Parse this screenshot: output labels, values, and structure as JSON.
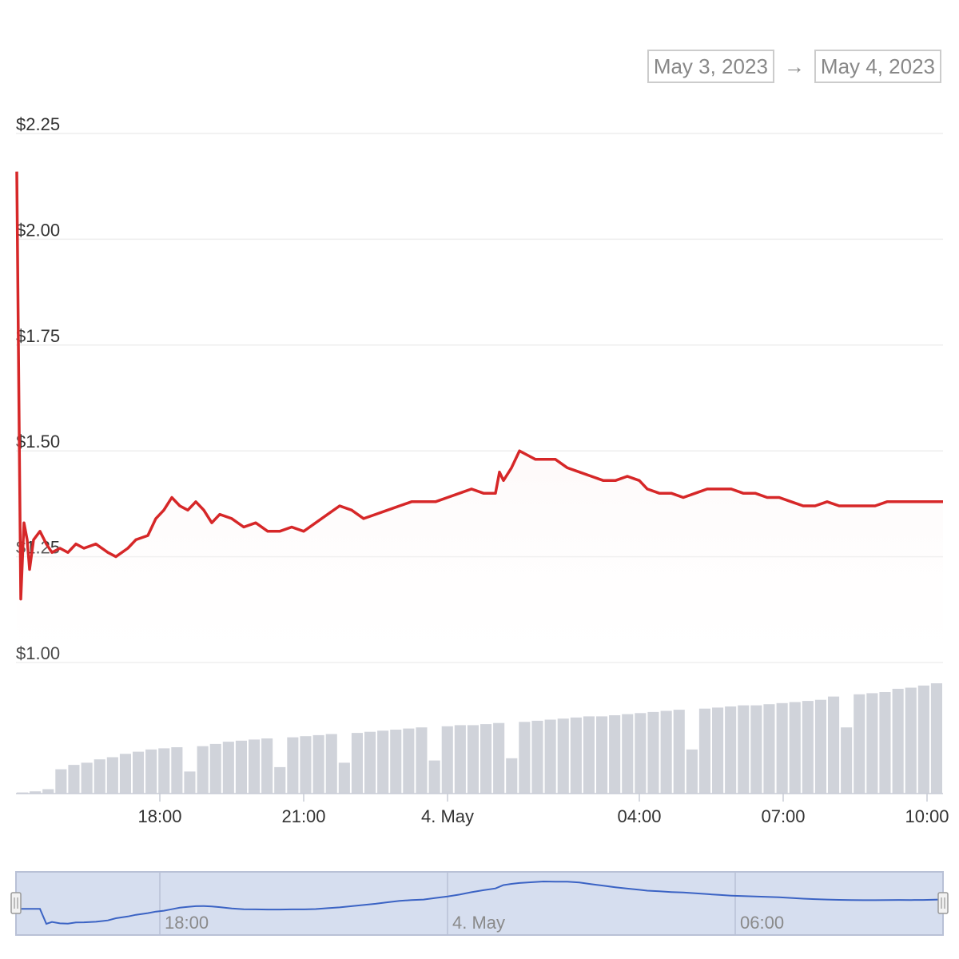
{
  "range_selector": {
    "from": "May 3, 2023",
    "arrow": "→",
    "to": "May 4, 2023"
  },
  "colors": {
    "price_line": "#d62728",
    "area_fill": "#fbe9e9",
    "volume_bar": "#d0d3da",
    "navigator_fill": "#d6deef",
    "navigator_line": "#3b63c4",
    "grid": "#eeeeee"
  },
  "chart_data": {
    "type": "line",
    "title": "",
    "xlabel": "",
    "ylabel": "",
    "ylim": [
      1.0,
      2.25
    ],
    "y_tick_labels": [
      "$1.00",
      "$1.25",
      "$1.50",
      "$1.75",
      "$2.00",
      "$2.25"
    ],
    "y_ticks": [
      1.0,
      1.25,
      1.5,
      1.75,
      2.0,
      2.25
    ],
    "x_range": [
      "2023-05-03T15:00",
      "2023-05-04T10:20"
    ],
    "x_tick_labels": [
      {
        "t": "2023-05-03T18:00",
        "label": "18:00"
      },
      {
        "t": "2023-05-03T21:00",
        "label": "21:00"
      },
      {
        "t": "2023-05-04T00:00",
        "label": "4. May"
      },
      {
        "t": "2023-05-04T04:00",
        "label": "04:00"
      },
      {
        "t": "2023-05-04T07:00",
        "label": "07:00"
      },
      {
        "t": "2023-05-04T10:00",
        "label": "10:00"
      }
    ],
    "grid": true,
    "series": [
      {
        "values": [
          [
            "2023-05-03T15:01",
            2.16
          ],
          [
            "2023-05-03T15:06",
            1.15
          ],
          [
            "2023-05-03T15:10",
            1.33
          ],
          [
            "2023-05-03T15:14",
            1.29
          ],
          [
            "2023-05-03T15:17",
            1.22
          ],
          [
            "2023-05-03T15:22",
            1.29
          ],
          [
            "2023-05-03T15:30",
            1.31
          ],
          [
            "2023-05-03T15:38",
            1.28
          ],
          [
            "2023-05-03T15:45",
            1.26
          ],
          [
            "2023-05-03T15:55",
            1.27
          ],
          [
            "2023-05-03T16:05",
            1.26
          ],
          [
            "2023-05-03T16:15",
            1.28
          ],
          [
            "2023-05-03T16:25",
            1.27
          ],
          [
            "2023-05-03T16:40",
            1.28
          ],
          [
            "2023-05-03T16:55",
            1.26
          ],
          [
            "2023-05-03T17:05",
            1.25
          ],
          [
            "2023-05-03T17:20",
            1.27
          ],
          [
            "2023-05-03T17:30",
            1.29
          ],
          [
            "2023-05-03T17:45",
            1.3
          ],
          [
            "2023-05-03T17:55",
            1.34
          ],
          [
            "2023-05-03T18:05",
            1.36
          ],
          [
            "2023-05-03T18:15",
            1.39
          ],
          [
            "2023-05-03T18:25",
            1.37
          ],
          [
            "2023-05-03T18:35",
            1.36
          ],
          [
            "2023-05-03T18:45",
            1.38
          ],
          [
            "2023-05-03T18:55",
            1.36
          ],
          [
            "2023-05-03T19:05",
            1.33
          ],
          [
            "2023-05-03T19:15",
            1.35
          ],
          [
            "2023-05-03T19:30",
            1.34
          ],
          [
            "2023-05-03T19:45",
            1.32
          ],
          [
            "2023-05-03T20:00",
            1.33
          ],
          [
            "2023-05-03T20:15",
            1.31
          ],
          [
            "2023-05-03T20:30",
            1.31
          ],
          [
            "2023-05-03T20:45",
            1.32
          ],
          [
            "2023-05-03T21:00",
            1.31
          ],
          [
            "2023-05-03T21:15",
            1.33
          ],
          [
            "2023-05-03T21:30",
            1.35
          ],
          [
            "2023-05-03T21:45",
            1.37
          ],
          [
            "2023-05-03T22:00",
            1.36
          ],
          [
            "2023-05-03T22:15",
            1.34
          ],
          [
            "2023-05-03T22:30",
            1.35
          ],
          [
            "2023-05-03T22:45",
            1.36
          ],
          [
            "2023-05-03T23:00",
            1.37
          ],
          [
            "2023-05-03T23:15",
            1.38
          ],
          [
            "2023-05-03T23:30",
            1.38
          ],
          [
            "2023-05-03T23:45",
            1.38
          ],
          [
            "2023-05-04T00:00",
            1.39
          ],
          [
            "2023-05-04T00:15",
            1.4
          ],
          [
            "2023-05-04T00:30",
            1.41
          ],
          [
            "2023-05-04T00:45",
            1.4
          ],
          [
            "2023-05-04T01:00",
            1.4
          ],
          [
            "2023-05-04T01:05",
            1.45
          ],
          [
            "2023-05-04T01:10",
            1.43
          ],
          [
            "2023-05-04T01:20",
            1.46
          ],
          [
            "2023-05-04T01:30",
            1.5
          ],
          [
            "2023-05-04T01:40",
            1.49
          ],
          [
            "2023-05-04T01:50",
            1.48
          ],
          [
            "2023-05-04T02:00",
            1.48
          ],
          [
            "2023-05-04T02:15",
            1.48
          ],
          [
            "2023-05-04T02:30",
            1.46
          ],
          [
            "2023-05-04T02:45",
            1.45
          ],
          [
            "2023-05-04T03:00",
            1.44
          ],
          [
            "2023-05-04T03:15",
            1.43
          ],
          [
            "2023-05-04T03:30",
            1.43
          ],
          [
            "2023-05-04T03:45",
            1.44
          ],
          [
            "2023-05-04T04:00",
            1.43
          ],
          [
            "2023-05-04T04:10",
            1.41
          ],
          [
            "2023-05-04T04:25",
            1.4
          ],
          [
            "2023-05-04T04:40",
            1.4
          ],
          [
            "2023-05-04T04:55",
            1.39
          ],
          [
            "2023-05-04T05:10",
            1.4
          ],
          [
            "2023-05-04T05:25",
            1.41
          ],
          [
            "2023-05-04T05:40",
            1.41
          ],
          [
            "2023-05-04T05:55",
            1.41
          ],
          [
            "2023-05-04T06:10",
            1.4
          ],
          [
            "2023-05-04T06:25",
            1.4
          ],
          [
            "2023-05-04T06:40",
            1.39
          ],
          [
            "2023-05-04T06:55",
            1.39
          ],
          [
            "2023-05-04T07:10",
            1.38
          ],
          [
            "2023-05-04T07:25",
            1.37
          ],
          [
            "2023-05-04T07:40",
            1.37
          ],
          [
            "2023-05-04T07:55",
            1.38
          ],
          [
            "2023-05-04T08:10",
            1.37
          ],
          [
            "2023-05-04T08:25",
            1.37
          ],
          [
            "2023-05-04T08:40",
            1.37
          ],
          [
            "2023-05-04T08:55",
            1.37
          ],
          [
            "2023-05-04T09:10",
            1.38
          ],
          [
            "2023-05-04T09:25",
            1.38
          ],
          [
            "2023-05-04T09:40",
            1.38
          ],
          [
            "2023-05-04T09:55",
            1.38
          ],
          [
            "2023-05-04T10:10",
            1.38
          ],
          [
            "2023-05-04T10:20",
            1.38
          ]
        ]
      }
    ],
    "volume": {
      "type": "bar",
      "values_relative": [
        0.01,
        0.02,
        0.04,
        0.22,
        0.26,
        0.28,
        0.31,
        0.33,
        0.36,
        0.38,
        0.4,
        0.41,
        0.42,
        0.2,
        0.43,
        0.45,
        0.47,
        0.48,
        0.49,
        0.5,
        0.24,
        0.51,
        0.52,
        0.53,
        0.54,
        0.28,
        0.55,
        0.56,
        0.57,
        0.58,
        0.59,
        0.6,
        0.3,
        0.61,
        0.62,
        0.62,
        0.63,
        0.64,
        0.32,
        0.65,
        0.66,
        0.67,
        0.68,
        0.69,
        0.7,
        0.7,
        0.71,
        0.72,
        0.73,
        0.74,
        0.75,
        0.76,
        0.4,
        0.77,
        0.78,
        0.79,
        0.8,
        0.8,
        0.81,
        0.82,
        0.83,
        0.84,
        0.85,
        0.88,
        0.6,
        0.9,
        0.91,
        0.92,
        0.95,
        0.96,
        0.98,
        1.0
      ]
    },
    "navigator": {
      "x_tick_labels": [
        {
          "t": "2023-05-03T18:00",
          "label": "18:00"
        },
        {
          "t": "2023-05-04T00:00",
          "label": "4. May"
        },
        {
          "t": "2023-05-04T06:00",
          "label": "06:00"
        }
      ]
    }
  }
}
